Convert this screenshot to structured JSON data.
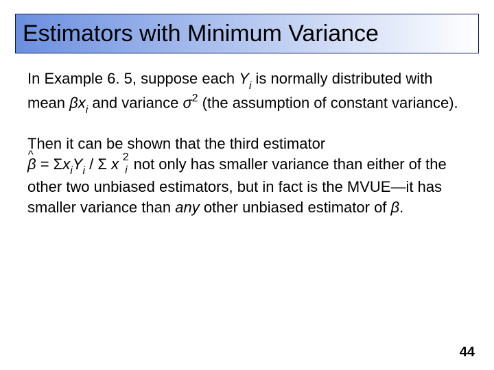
{
  "title": {
    "text": "Estimators with Minimum Variance",
    "fontsize": 34,
    "border_color": "#0a1a6a",
    "gradient_from": "#6b8fe0",
    "gradient_to": "#ffffff"
  },
  "body": {
    "fontsize": 22,
    "p1_a": "In Example 6. 5, suppose each ",
    "p1_y": "Y",
    "p1_i1": "i",
    "p1_b": " is normally distributed with mean ",
    "p1_beta": "β",
    "p1_x": "x",
    "p1_i2": "i",
    "p1_c": " and variance ",
    "p1_sigma": "σ",
    "p1_sq": "2",
    "p1_d": " (the assumption of constant variance).",
    "p2_a": "Then it can be shown that the third estimator",
    "p2_betahat": "β",
    "p2_eq": " = ",
    "p2_sum1": "Σ",
    "p2_x": "x",
    "p2_i1": "i",
    "p2_y": "Y",
    "p2_i2": "i",
    "p2_slash": " / ",
    "p2_sum2": "Σ",
    "p2_xi2_x": "x",
    "p2_xi2_sq": "2",
    "p2_xi2_i": "i",
    "p2_b": " not only has smaller variance than either of the other two unbiased estimators, but in fact is the MVUE—it has smaller variance than ",
    "p2_any": "any",
    "p2_c": " other unbiased estimator of ",
    "p2_beta": "β",
    "p2_period": "."
  },
  "page_number": "44",
  "page_number_fontsize": 20,
  "colors": {
    "text": "#000000",
    "background": "#ffffff"
  }
}
